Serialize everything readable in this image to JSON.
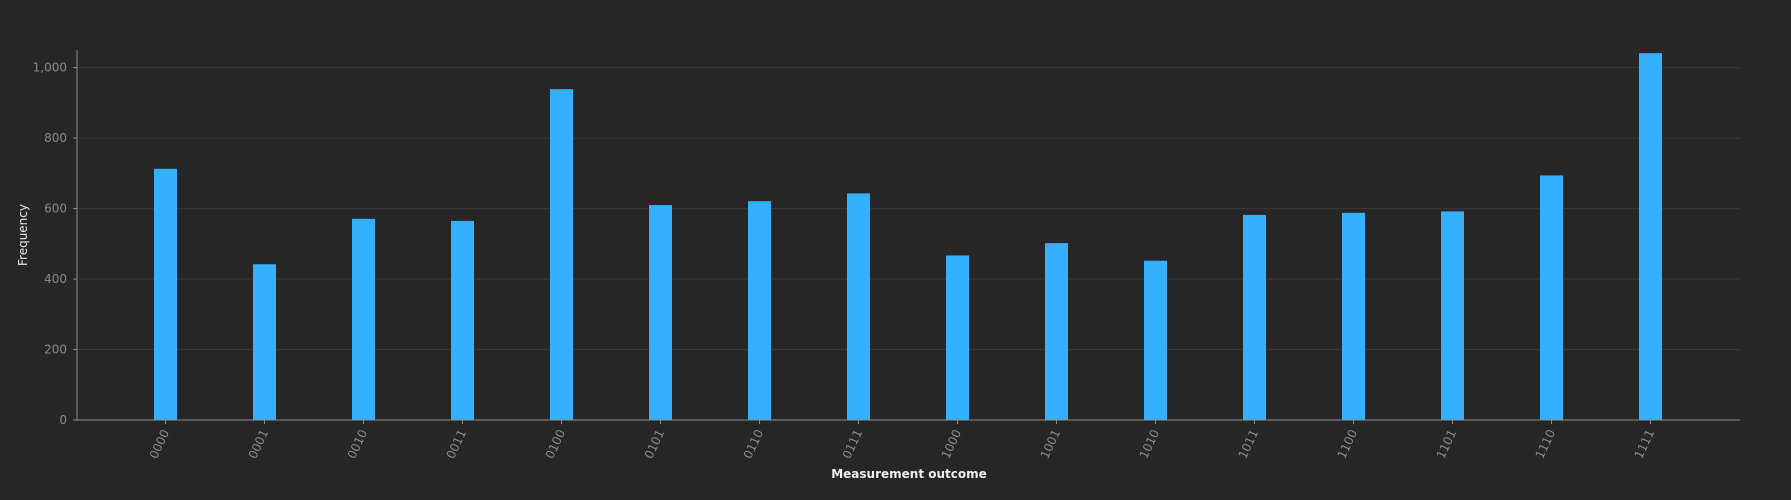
{
  "chart_data": {
    "type": "bar",
    "title": "",
    "xlabel": "Measurement outcome",
    "ylabel": "Frequency",
    "categories": [
      "0000",
      "0001",
      "0010",
      "0011",
      "0100",
      "0101",
      "0110",
      "0111",
      "1000",
      "1001",
      "1010",
      "1011",
      "1100",
      "1101",
      "1110",
      "1111"
    ],
    "values": [
      713,
      442,
      571,
      565,
      939,
      610,
      621,
      643,
      467,
      502,
      452,
      582,
      588,
      592,
      694,
      1041
    ],
    "ylim": [
      0,
      1050
    ],
    "yticks": [
      0,
      200,
      400,
      600,
      800,
      1000
    ],
    "ytick_labels": [
      "0",
      "200",
      "400",
      "600",
      "800",
      "1,000"
    ],
    "grid": true,
    "legend": "none",
    "colors": {
      "background": "#262626",
      "bar": "#33b1ff",
      "grid": "#393939",
      "axis": "#8d8d8d",
      "tick_text": "#8c8c8c",
      "label_text": "#e8e8e8"
    }
  }
}
